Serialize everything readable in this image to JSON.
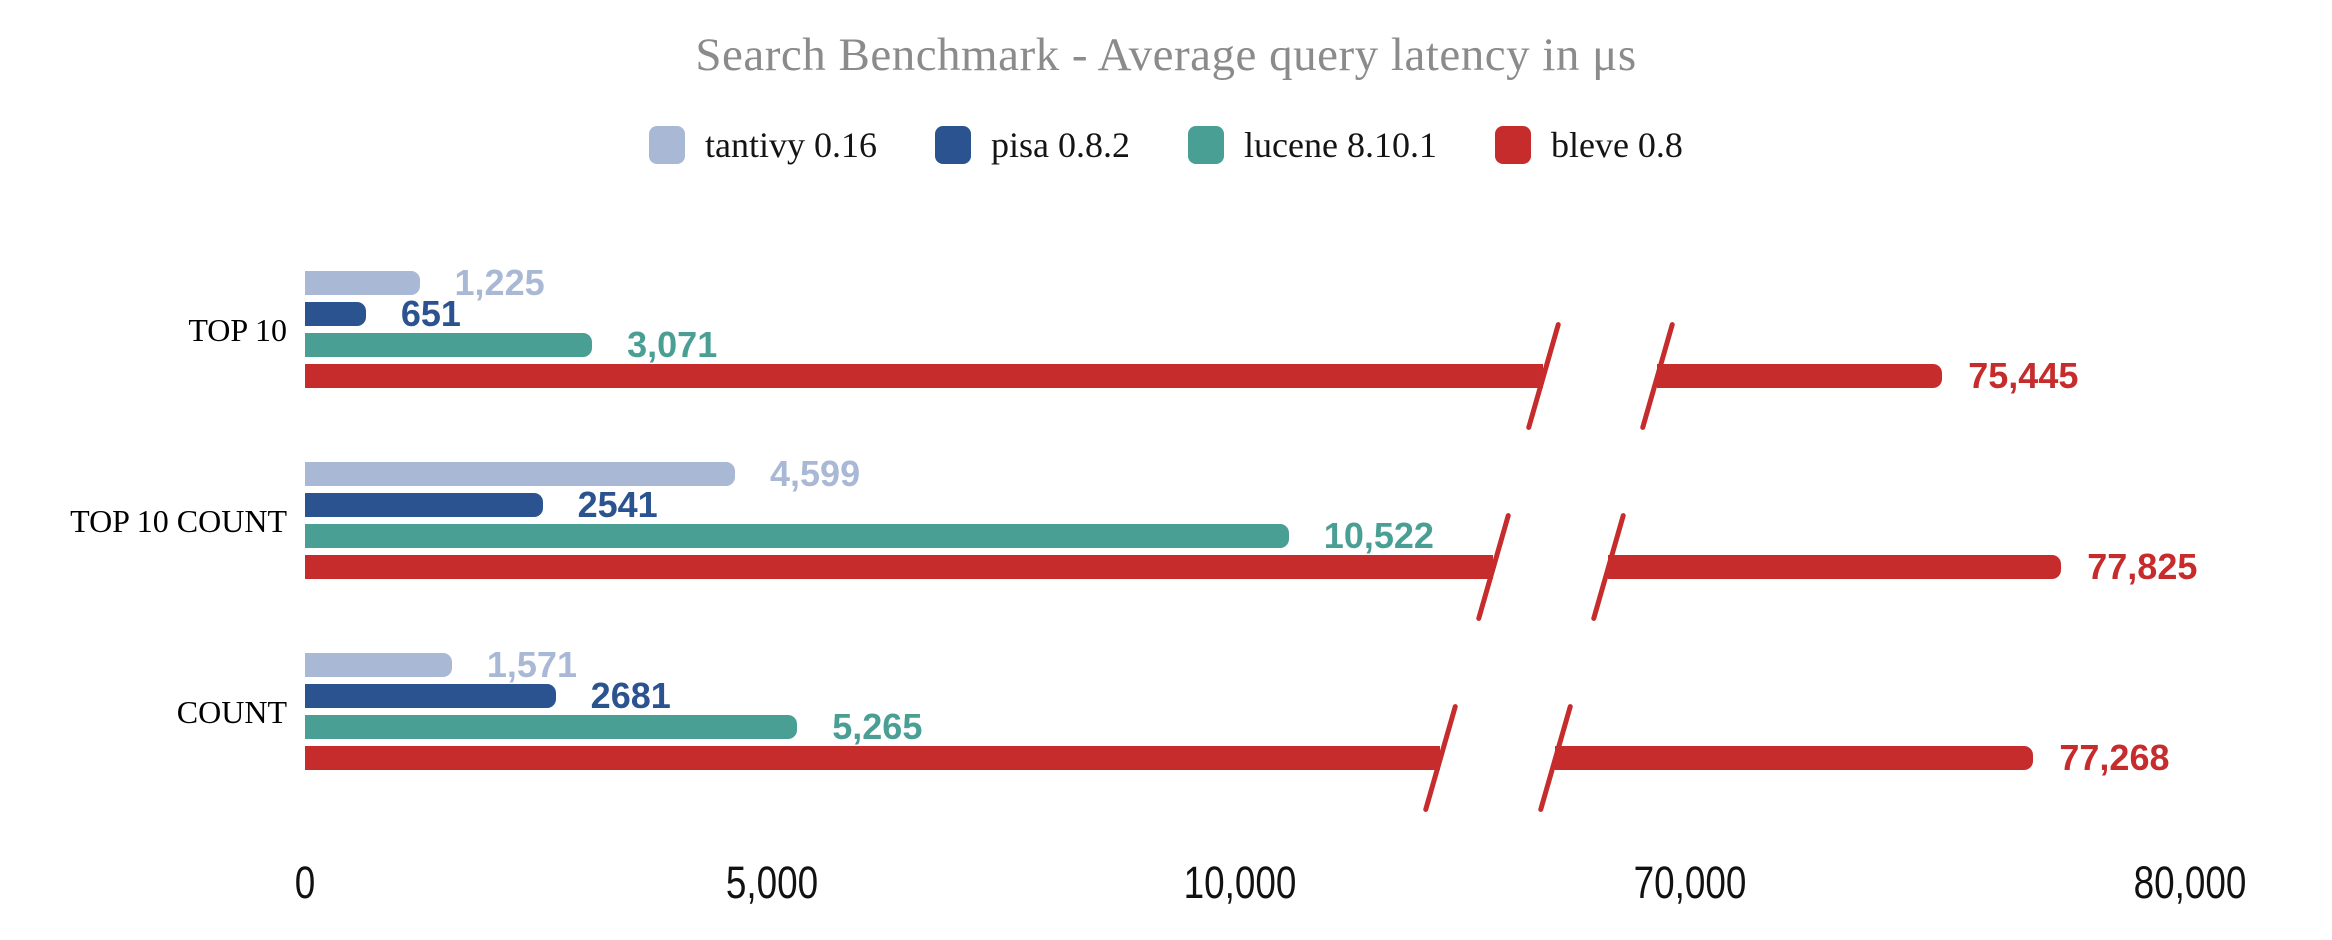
{
  "chart_data": {
    "type": "bar",
    "orientation": "horizontal",
    "title": "Search Benchmark - Average query latency in μs",
    "legend_position": "top",
    "grid": false,
    "axis_break": {
      "enabled": true,
      "between": [
        10000,
        70000
      ]
    },
    "categories": [
      "TOP 10",
      "TOP 10 COUNT",
      "COUNT"
    ],
    "series": [
      {
        "name": "tantivy 0.16",
        "color": "#a9b8d4",
        "values": [
          1225,
          4599,
          1571
        ],
        "display": [
          "1,225",
          "4,599",
          "1,571"
        ]
      },
      {
        "name": "pisa 0.8.2",
        "color": "#2a5390",
        "values": [
          651,
          2541,
          2681
        ],
        "display": [
          "651",
          "2541",
          "2681"
        ]
      },
      {
        "name": "lucene 8.10.1",
        "color": "#4a9f94",
        "values": [
          3071,
          10522,
          5265
        ],
        "display": [
          "3,071",
          "10,522",
          "5,265"
        ]
      },
      {
        "name": "bleve 0.8",
        "color": "#c62c2c",
        "values": [
          75445,
          77825,
          77268
        ],
        "display": [
          "75,445",
          "77,825",
          "77,268"
        ]
      }
    ],
    "x_axis": {
      "tick_labels": [
        "0",
        "5,000",
        "10,000",
        "70,000",
        "80,000"
      ],
      "tick_values": [
        0,
        5000,
        10000,
        70000,
        80000
      ]
    },
    "colors": {
      "title_text": "#8b8b8b",
      "axis_text": "#111111",
      "category_text": "#000000"
    }
  }
}
